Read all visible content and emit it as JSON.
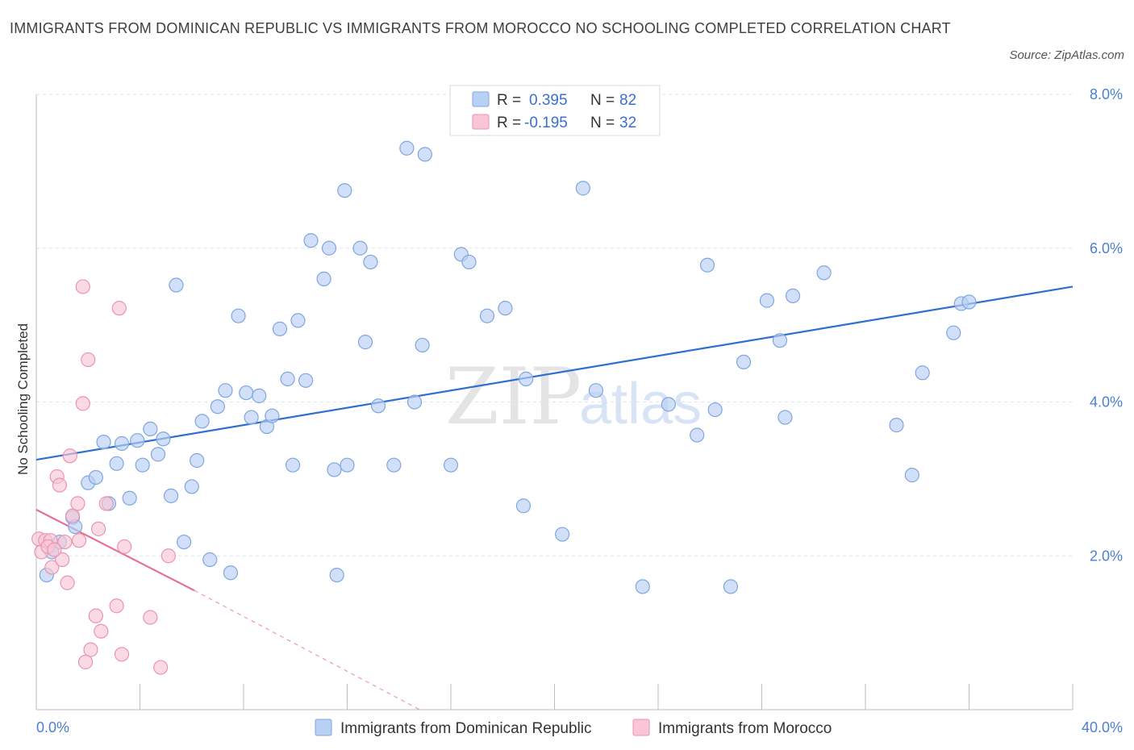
{
  "title": "IMMIGRANTS FROM DOMINICAN REPUBLIC VS IMMIGRANTS FROM MOROCCO NO SCHOOLING COMPLETED CORRELATION CHART",
  "source": "Source: ZipAtlas.com",
  "watermark": {
    "zip": "ZIP",
    "atlas": "atlas"
  },
  "colors": {
    "blue_fill": "#b8d0f4",
    "blue_stroke": "#7fa6df",
    "blue_line": "#2f6fd0",
    "pink_fill": "#f8c6d6",
    "pink_stroke": "#ec93b1",
    "pink_line": "#e56d98",
    "grid": "#dde3ea",
    "axis_text": "#4a7fd4"
  },
  "legend_top": {
    "rows": [
      {
        "r_label": "R =",
        "r_value": "0.395",
        "n_label": "N =",
        "n_value": "82",
        "color": "blue"
      },
      {
        "r_label": "R =",
        "r_value": "-0.195",
        "n_label": "N =",
        "n_value": "32",
        "color": "pink"
      }
    ]
  },
  "chart_data": {
    "type": "scatter",
    "title": "IMMIGRANTS FROM DOMINICAN REPUBLIC VS IMMIGRANTS FROM MOROCCO NO SCHOOLING COMPLETED CORRELATION CHART",
    "xlabel": "",
    "ylabel": "No Schooling Completed",
    "xlim": [
      0,
      40
    ],
    "ylim": [
      0,
      8
    ],
    "x_tick_labels": [
      {
        "value": 0,
        "label": "0.0%"
      },
      {
        "value": 40,
        "label": "40.0%"
      }
    ],
    "y_tick_labels": [
      {
        "value": 2,
        "label": "2.0%"
      },
      {
        "value": 4,
        "label": "4.0%"
      },
      {
        "value": 6,
        "label": "6.0%"
      },
      {
        "value": 8,
        "label": "8.0%"
      }
    ],
    "grid": true,
    "legend_placement": "bottom-center",
    "series": [
      {
        "name": "Immigrants from Dominican Republic",
        "color": "#7fa6df",
        "trend": {
          "x": [
            0,
            40
          ],
          "y": [
            3.25,
            5.5
          ]
        },
        "points": [
          [
            0.4,
            1.75
          ],
          [
            0.6,
            2.05
          ],
          [
            0.9,
            2.18
          ],
          [
            1.4,
            2.5
          ],
          [
            1.5,
            2.38
          ],
          [
            2.0,
            2.95
          ],
          [
            2.3,
            3.02
          ],
          [
            2.6,
            3.48
          ],
          [
            2.8,
            2.68
          ],
          [
            3.1,
            3.2
          ],
          [
            3.3,
            3.46
          ],
          [
            3.6,
            2.75
          ],
          [
            3.9,
            3.5
          ],
          [
            4.1,
            3.18
          ],
          [
            4.4,
            3.65
          ],
          [
            4.7,
            3.32
          ],
          [
            4.9,
            3.52
          ],
          [
            5.2,
            2.78
          ],
          [
            5.4,
            5.52
          ],
          [
            5.7,
            2.18
          ],
          [
            6.0,
            2.9
          ],
          [
            6.2,
            3.24
          ],
          [
            6.4,
            3.75
          ],
          [
            6.7,
            1.95
          ],
          [
            7.0,
            3.94
          ],
          [
            7.3,
            4.15
          ],
          [
            7.5,
            1.78
          ],
          [
            7.8,
            5.12
          ],
          [
            8.1,
            4.12
          ],
          [
            8.3,
            3.8
          ],
          [
            8.6,
            4.08
          ],
          [
            8.9,
            3.68
          ],
          [
            9.1,
            3.82
          ],
          [
            9.4,
            4.95
          ],
          [
            9.7,
            4.3
          ],
          [
            9.9,
            3.18
          ],
          [
            10.1,
            5.06
          ],
          [
            10.4,
            4.28
          ],
          [
            10.6,
            6.1
          ],
          [
            11.1,
            5.6
          ],
          [
            11.3,
            6.0
          ],
          [
            11.5,
            3.12
          ],
          [
            11.6,
            1.75
          ],
          [
            11.9,
            6.75
          ],
          [
            12.0,
            3.18
          ],
          [
            12.5,
            6.0
          ],
          [
            12.7,
            4.78
          ],
          [
            12.9,
            5.82
          ],
          [
            13.2,
            3.95
          ],
          [
            13.8,
            3.18
          ],
          [
            14.3,
            7.3
          ],
          [
            14.6,
            4.0
          ],
          [
            14.9,
            4.74
          ],
          [
            15.0,
            7.22
          ],
          [
            16.0,
            3.18
          ],
          [
            16.4,
            5.92
          ],
          [
            16.7,
            5.82
          ],
          [
            17.4,
            5.12
          ],
          [
            18.1,
            5.22
          ],
          [
            18.8,
            2.65
          ],
          [
            18.9,
            4.3
          ],
          [
            20.3,
            2.28
          ],
          [
            21.1,
            6.78
          ],
          [
            21.6,
            4.15
          ],
          [
            24.4,
            3.97
          ],
          [
            25.5,
            3.57
          ],
          [
            25.9,
            5.78
          ],
          [
            26.2,
            3.9
          ],
          [
            27.3,
            4.52
          ],
          [
            28.2,
            5.32
          ],
          [
            28.7,
            4.8
          ],
          [
            28.9,
            3.8
          ],
          [
            29.2,
            5.38
          ],
          [
            30.4,
            5.68
          ],
          [
            33.2,
            3.7
          ],
          [
            33.8,
            3.05
          ],
          [
            34.2,
            4.38
          ],
          [
            35.4,
            4.9
          ],
          [
            35.7,
            5.28
          ],
          [
            36.0,
            5.3
          ],
          [
            23.4,
            1.6
          ],
          [
            26.8,
            1.6
          ]
        ]
      },
      {
        "name": "Immigrants from Morocco",
        "color": "#ec93b1",
        "trend": {
          "x": [
            0,
            6.1
          ],
          "y": [
            2.6,
            1.55
          ]
        },
        "trend_dashed": {
          "x": [
            6.1,
            14.8
          ],
          "y": [
            1.55,
            0.0
          ]
        },
        "points": [
          [
            0.1,
            2.22
          ],
          [
            0.2,
            2.05
          ],
          [
            0.35,
            2.2
          ],
          [
            0.55,
            2.2
          ],
          [
            0.6,
            1.85
          ],
          [
            0.8,
            3.03
          ],
          [
            0.9,
            2.92
          ],
          [
            1.0,
            1.95
          ],
          [
            1.2,
            1.65
          ],
          [
            1.3,
            3.3
          ],
          [
            1.4,
            2.52
          ],
          [
            1.6,
            2.68
          ],
          [
            1.65,
            2.2
          ],
          [
            1.8,
            3.98
          ],
          [
            1.8,
            5.5
          ],
          [
            2.0,
            4.55
          ],
          [
            2.1,
            0.78
          ],
          [
            2.3,
            1.22
          ],
          [
            2.5,
            1.02
          ],
          [
            2.7,
            2.68
          ],
          [
            3.1,
            1.35
          ],
          [
            3.2,
            5.22
          ],
          [
            3.3,
            0.72
          ],
          [
            3.4,
            2.12
          ],
          [
            4.4,
            1.2
          ],
          [
            4.8,
            0.55
          ],
          [
            5.1,
            2.0
          ],
          [
            1.9,
            0.62
          ],
          [
            2.4,
            2.35
          ],
          [
            1.1,
            2.18
          ],
          [
            0.45,
            2.12
          ],
          [
            0.7,
            2.08
          ]
        ]
      }
    ]
  },
  "legend_bottom": {
    "items": [
      {
        "label": "Immigrants from Dominican Republic",
        "color": "blue"
      },
      {
        "label": "Immigrants from Morocco",
        "color": "pink"
      }
    ]
  }
}
